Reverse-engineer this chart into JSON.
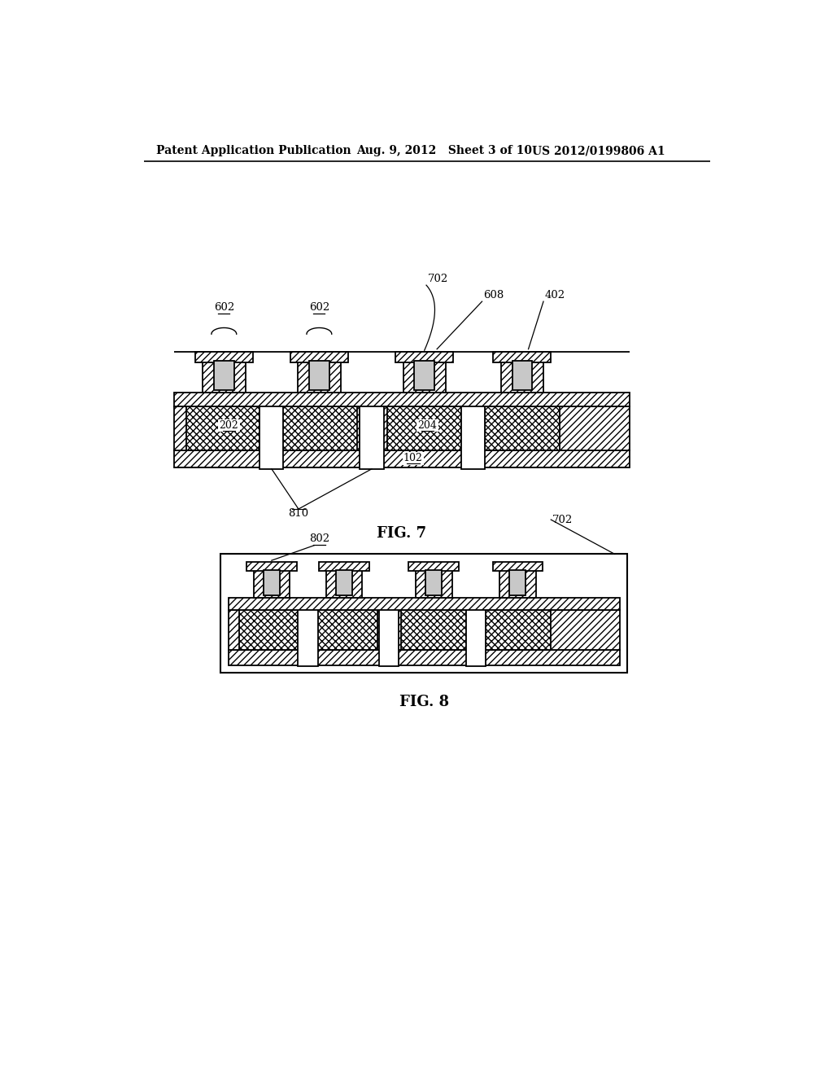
{
  "bg_color": "#ffffff",
  "header_left": "Patent Application Publication",
  "header_mid": "Aug. 9, 2012   Sheet 3 of 10",
  "header_right": "US 2012/0199806 A1",
  "fig7_label": "FIG. 7",
  "fig8_label": "FIG. 8"
}
